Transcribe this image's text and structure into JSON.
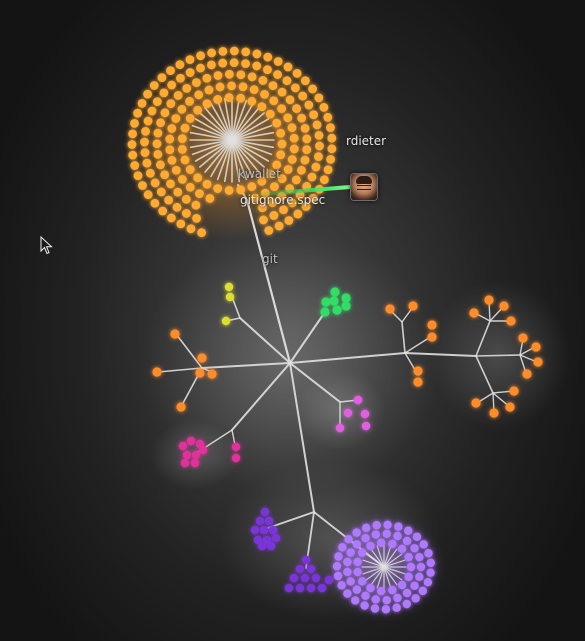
{
  "labels": {
    "user": "rdieter",
    "file_kwallet": "kwallet",
    "file_overlap": "gitignore.spec",
    "dir_git": "git"
  },
  "icons": {
    "user_avatar": "user-avatar-icon",
    "pointer": "mouse-pointer-icon"
  },
  "colors": {
    "background": "#2b2b2b",
    "edge": "#e0e0e0",
    "action_beam": "#33cc55",
    "orange_files": "#ffaa33",
    "orange_small": "#ff8c2a",
    "green_files": "#33dd66",
    "yellow_files": "#dddd33",
    "magenta_files": "#e0309a",
    "pink_files": "#e060e0",
    "purple_files": "#7a35d8",
    "violet_files": "#b07aff"
  }
}
